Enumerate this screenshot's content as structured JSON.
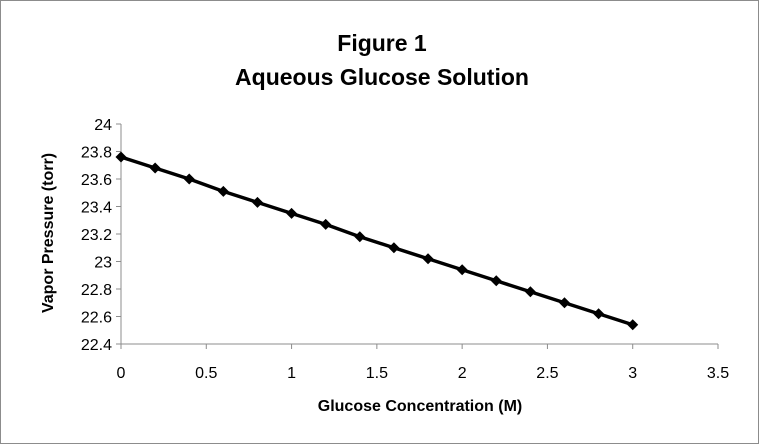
{
  "chart_data": {
    "type": "line",
    "title": [
      "Figure 1",
      "Aqueous  Glucose Solution"
    ],
    "xlabel": "Glucose Concentration (M)",
    "ylabel": "Vapor Pressure (torr)",
    "xlim": [
      0,
      3.5
    ],
    "ylim": [
      22.4,
      24
    ],
    "xticks": [
      "0",
      "0.5",
      "1",
      "1.5",
      "2",
      "2.5",
      "3",
      "3.5"
    ],
    "xtick_values": [
      0,
      0.5,
      1,
      1.5,
      2,
      2.5,
      3,
      3.5
    ],
    "yticks": [
      "22.4",
      "22.6",
      "22.8",
      "23",
      "23.2",
      "23.4",
      "23.6",
      "23.8",
      "24"
    ],
    "ytick_values": [
      22.4,
      22.6,
      22.8,
      23.0,
      23.2,
      23.4,
      23.6,
      23.8,
      24.0
    ],
    "grid": false,
    "legend": "none",
    "series": [
      {
        "marker": "diamond",
        "color": "#000000",
        "x": [
          0,
          0.2,
          0.4,
          0.6,
          0.8,
          1.0,
          1.2,
          1.4,
          1.6,
          1.8,
          2.0,
          2.2,
          2.4,
          2.6,
          2.8,
          3.0
        ],
        "y": [
          23.76,
          23.68,
          23.6,
          23.51,
          23.43,
          23.35,
          23.27,
          23.18,
          23.1,
          23.02,
          22.94,
          22.86,
          22.78,
          22.7,
          22.62,
          22.54
        ]
      }
    ]
  }
}
